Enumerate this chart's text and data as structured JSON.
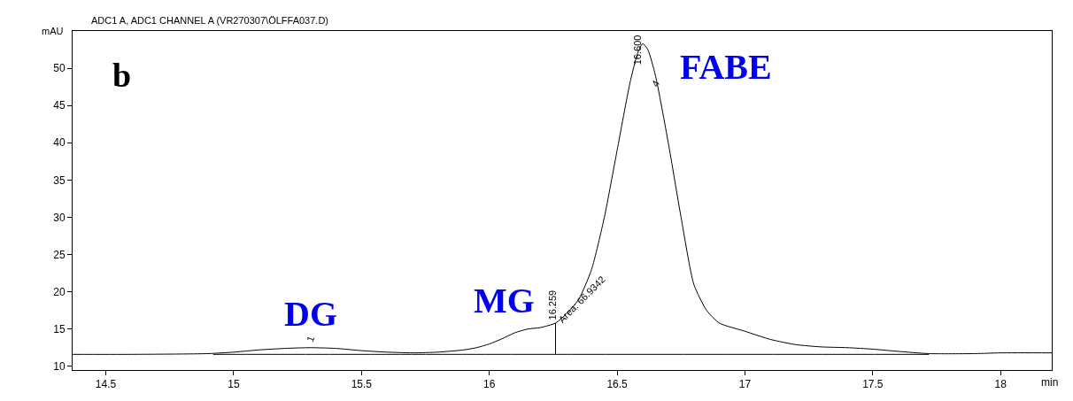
{
  "chart_data": {
    "type": "line",
    "title": "ADC1 A, ADC1 CHANNEL A (VR270307\\ÖLFFA037.D)",
    "xlabel": "min",
    "ylabel": "mAU",
    "xlim": [
      14.37,
      18.2
    ],
    "ylim": [
      9.5,
      55
    ],
    "xticks": [
      14.5,
      15,
      15.5,
      16,
      16.5,
      17,
      17.5,
      18
    ],
    "yticks": [
      10,
      15,
      20,
      25,
      30,
      35,
      40,
      45,
      50
    ],
    "marker": "none",
    "line_style": "solid",
    "series": [
      {
        "color": "#000000",
        "x": [
          14.37,
          14.6,
          14.9,
          15.0,
          15.1,
          15.2,
          15.3,
          15.4,
          15.5,
          15.6,
          15.7,
          15.8,
          15.9,
          15.95,
          16.0,
          16.05,
          16.1,
          16.15,
          16.2,
          16.259,
          16.3,
          16.35,
          16.4,
          16.45,
          16.5,
          16.55,
          16.58,
          16.6,
          16.62,
          16.65,
          16.7,
          16.75,
          16.8,
          16.85,
          16.9,
          17.0,
          17.1,
          17.2,
          17.3,
          17.4,
          17.5,
          17.6,
          17.72,
          17.9,
          18.0,
          18.2
        ],
        "values": [
          11.6,
          11.6,
          11.7,
          11.9,
          12.2,
          12.4,
          12.5,
          12.4,
          12.1,
          11.9,
          11.8,
          11.9,
          12.2,
          12.5,
          13.0,
          13.7,
          14.5,
          15.0,
          15.2,
          15.8,
          17.0,
          19.0,
          23,
          30,
          39,
          48,
          52,
          53.3,
          52.5,
          49,
          40,
          30,
          21,
          17.5,
          15.8,
          14.7,
          13.6,
          12.9,
          12.6,
          12.5,
          12.3,
          12.0,
          11.7,
          11.7,
          11.8,
          11.8
        ]
      },
      {
        "color": "#000000",
        "x": [
          14.92,
          15.65,
          17.72
        ],
        "values": [
          11.6,
          11.6,
          11.6
        ]
      },
      {
        "color": "#000000",
        "x": [
          16.259,
          16.259
        ],
        "values": [
          11.6,
          15.8
        ]
      }
    ],
    "annotations": [
      "b",
      {
        "text": "DG",
        "x": 15.3,
        "y": 12.5
      },
      {
        "text": "MG",
        "x": 16.15,
        "y": 15.0
      },
      {
        "text": "FABE",
        "x": 16.6,
        "y": 53.3
      },
      {
        "text": "1",
        "x": 15.3,
        "y": 12.5
      },
      {
        "text": "16.259",
        "x": 16.259,
        "y": 15.8
      },
      {
        "text": "Area: 66.9342",
        "x": 16.259,
        "y": 15.8
      },
      {
        "text": "16.600",
        "x": 16.6,
        "y": 53.3
      },
      {
        "text": "4",
        "x": 16.65,
        "y": 48
      }
    ]
  }
}
